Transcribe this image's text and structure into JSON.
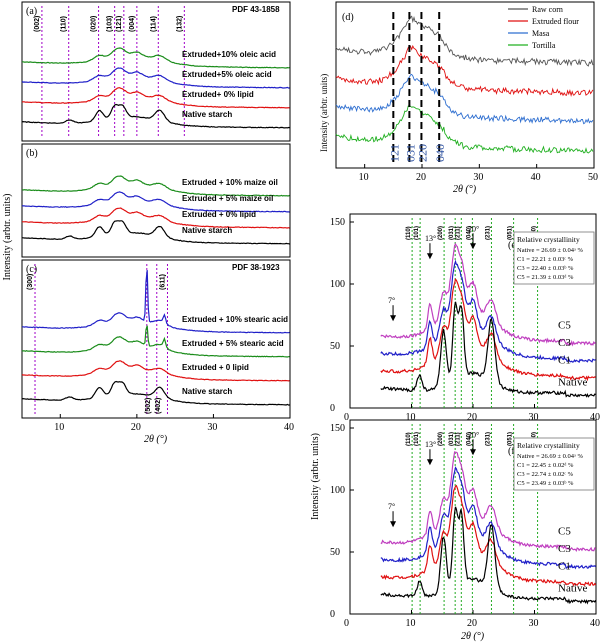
{
  "panels": [
    {
      "id": "a",
      "label": "(a)",
      "ref": "PDF 43-1858",
      "ylabel": "",
      "xlabel": "",
      "show_xticks": false,
      "xlim": [
        5,
        40
      ],
      "lines_color": "#a000c8",
      "lines": [
        {
          "x": 7.6,
          "label": "(002)"
        },
        {
          "x": 11.1,
          "label": "(110)"
        },
        {
          "x": 15.0,
          "label": "(020)"
        },
        {
          "x": 17.1,
          "label": "(103)"
        },
        {
          "x": 18.3,
          "label": "(121)"
        },
        {
          "x": 20.0,
          "label": "(004)"
        },
        {
          "x": 22.8,
          "label": "(114)"
        },
        {
          "x": 26.2,
          "label": "(132)"
        }
      ],
      "series": [
        {
          "name": "Extruded+10% oleic acid",
          "color": "#1a8c1a"
        },
        {
          "name": "Extruded+5% oleic acid",
          "color": "#2020c8"
        },
        {
          "name": "Extruded+ 0% lipid",
          "color": "#e01010"
        },
        {
          "name": "Native starch",
          "color": "#000000"
        }
      ]
    },
    {
      "id": "b",
      "label": "(b)",
      "ref": "",
      "ylabel": "Intensity (arbtr. units)",
      "xlabel": "",
      "show_xticks": false,
      "xlim": [
        5,
        40
      ],
      "lines": [],
      "series": [
        {
          "name": "Extruded + 10% maize oil",
          "color": "#1a8c1a"
        },
        {
          "name": "Extruded + 5% maize oil",
          "color": "#2020c8"
        },
        {
          "name": "Extruded + 0% lipid",
          "color": "#e01010"
        },
        {
          "name": "Native starch",
          "color": "#000000"
        }
      ]
    },
    {
      "id": "c",
      "label": "(c)",
      "ref": "PDF 38-1923",
      "ylabel": "",
      "xlabel": "2θ (°)",
      "show_xticks": true,
      "xlim": [
        5,
        40
      ],
      "xticks": [
        10,
        20,
        30,
        40
      ],
      "lines_color": "#a000c8",
      "lines": [
        {
          "x": 6.7,
          "label": "(300)"
        },
        {
          "x": 21.3,
          "label": "(502)"
        },
        {
          "x": 22.6,
          "label": "(402)"
        },
        {
          "x": 24.0,
          "label": "(611)"
        }
      ],
      "series": [
        {
          "name": "Extruded + 10% stearic acid",
          "color": "#2020c8"
        },
        {
          "name": "Extruded + 5% stearic acid",
          "color": "#1a8c1a"
        },
        {
          "name": "Extruded + 0 lipid",
          "color": "#e01010"
        },
        {
          "name": "Native starch",
          "color": "#000000"
        }
      ]
    }
  ],
  "panel_d": {
    "label": "(d)",
    "xlabel": "2θ (°)",
    "ylabel": "Intensity (arbtr. units)",
    "xlim": [
      5,
      50
    ],
    "xticks": [
      10,
      20,
      30,
      40,
      50
    ],
    "lines_color": "#000000",
    "lines": [
      15.0,
      17.8,
      19.9,
      23.0
    ],
    "line_labels": [
      "121",
      "031",
      "220",
      "040"
    ],
    "line_labels_color": "#2a4fa0",
    "legend": [
      {
        "name": "Raw corn",
        "color": "#555555"
      },
      {
        "name": "Extruded flour",
        "color": "#e01010"
      },
      {
        "name": "Masa",
        "color": "#2f6fd0"
      },
      {
        "name": "Tortilla",
        "color": "#22b022"
      }
    ]
  },
  "panels_ef": [
    {
      "label": "(e)",
      "xlabel": "",
      "show_xticklabels": true,
      "xlim": [
        0,
        40
      ],
      "ylim": [
        0,
        150
      ],
      "yticks": [
        0,
        50,
        100,
        150
      ],
      "xticks": [
        0,
        10,
        20,
        30,
        40
      ],
      "box_title": "Relative crystallinity",
      "box_lines": [
        "Native = 26.69 ± 0.04ᵃ %",
        "C1 = 22.21 ± 0.03ᶜ %",
        "C3 = 22.40 ± 0.03ᵇ %",
        "C5 = 21.39 ± 0.03ᵈ %"
      ],
      "arrows": [
        "7°",
        "13°",
        "20°"
      ],
      "guide_labels": [
        "(110)",
        "(101)",
        "(200)",
        "(031)",
        "(211)",
        "(040)",
        "(231)",
        "(051)",
        "(060)"
      ],
      "series": [
        {
          "name": "C5",
          "color": "#c040c0"
        },
        {
          "name": "C3",
          "color": "#2020c8"
        },
        {
          "name": "C1",
          "color": "#e01010"
        },
        {
          "name": "Native",
          "color": "#000000"
        }
      ]
    },
    {
      "label": "(f)",
      "xlabel": "2θ (°)",
      "show_xticklabels": true,
      "xlim": [
        0,
        40
      ],
      "ylim": [
        0,
        150
      ],
      "yticks": [
        0,
        50,
        100,
        150
      ],
      "xticks": [
        0,
        10,
        20,
        30,
        40
      ],
      "box_title": "Relative crystallinity",
      "box_lines": [
        "Native = 26.69 ± 0.04ᵃ %",
        "C1 = 22.45 ± 0.02ᵈ %",
        "C3 = 22.74 ± 0.02ᶜ %",
        "C5 = 23.49 ± 0.03ᵇ %"
      ],
      "arrows": [
        "7°",
        "13°",
        "20°"
      ],
      "guide_labels": [
        "(110)",
        "(101)",
        "(200)",
        "(031)",
        "(211)",
        "(040)",
        "(231)",
        "(051)",
        "(060)"
      ],
      "series": [
        {
          "name": "C5",
          "color": "#c040c0"
        },
        {
          "name": "C3",
          "color": "#2020c8"
        },
        {
          "name": "C1",
          "color": "#e01010"
        },
        {
          "name": "Native",
          "color": "#000000"
        }
      ]
    }
  ],
  "ef_ylabel": "Intensity (arbtr. units)"
}
